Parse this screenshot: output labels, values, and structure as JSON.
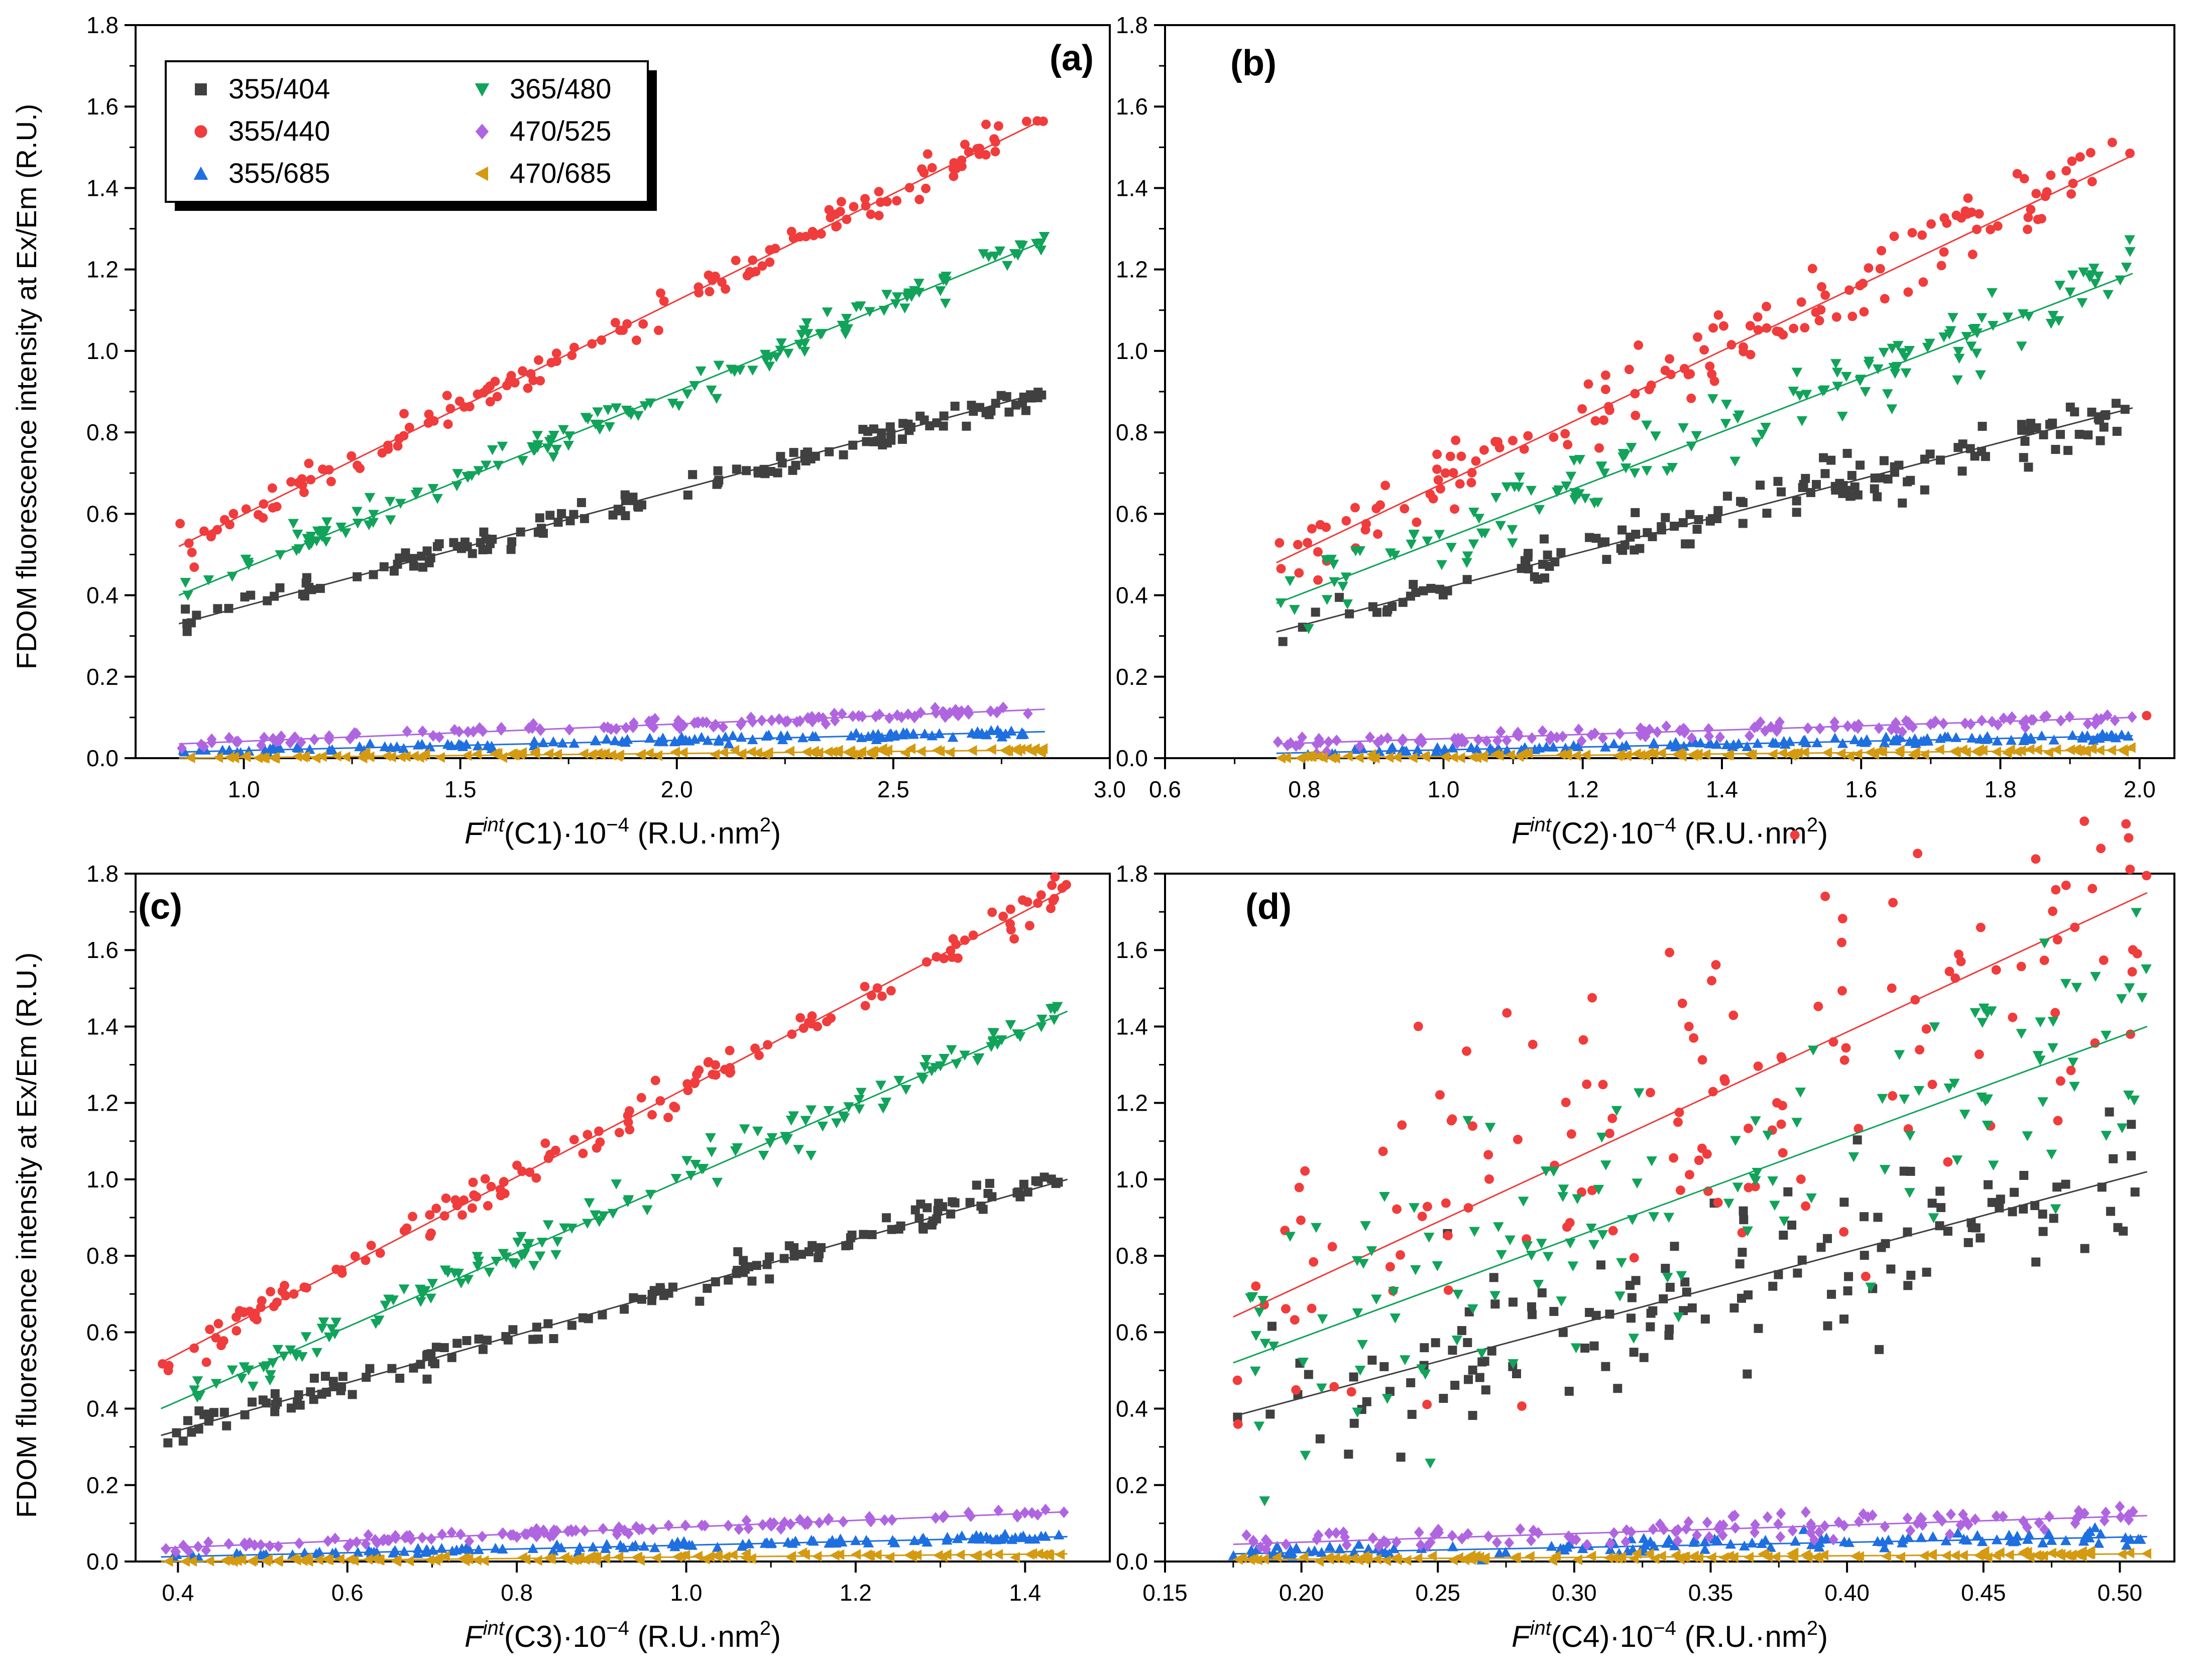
{
  "figure": {
    "y_axis_title": "FDOM fluorescence intensity at Ex/Em (R.U.)"
  },
  "legend": {
    "entries": [
      {
        "name": "355/404",
        "color": "#404040",
        "marker": "square"
      },
      {
        "name": "355/440",
        "color": "#f03c3c",
        "marker": "circle"
      },
      {
        "name": "355/685",
        "color": "#1e6fe0",
        "marker": "triangle-up"
      },
      {
        "name": "365/480",
        "color": "#11a35a",
        "marker": "triangle-down"
      },
      {
        "name": "470/525",
        "color": "#b065e0",
        "marker": "diamond"
      },
      {
        "name": "470/685",
        "color": "#d49a10",
        "marker": "triangle-left"
      }
    ]
  },
  "chart_data": [
    {
      "type": "scatter",
      "panel": "(a)",
      "xlabel_prefix": "F",
      "xlabel_sup": "int",
      "xlabel_rest": "(C1)·10",
      "xlabel_exp": "−4",
      "xlabel_units": " (R.U.·nm",
      "xlabel_units_exp": "2",
      "xlabel_close": ")",
      "xlim": [
        0.75,
        3.0
      ],
      "xticks": [
        1.0,
        1.5,
        2.0,
        2.5,
        3.0
      ],
      "xtick_labels": [
        "1.0",
        "1.5",
        "2.0",
        "2.5",
        "3.0"
      ],
      "ylim": [
        0.0,
        1.8
      ],
      "yticks": [
        0.0,
        0.2,
        0.4,
        0.6,
        0.8,
        1.0,
        1.2,
        1.4,
        1.6,
        1.8
      ],
      "ytick_labels": [
        "0.0",
        "0.2",
        "0.4",
        "0.6",
        "0.8",
        "1.0",
        "1.2",
        "1.4",
        "1.6",
        "1.8"
      ],
      "x_range": [
        0.85,
        2.85
      ],
      "series": [
        {
          "name": "355/404",
          "fit": [
            0.33,
            0.9
          ],
          "noise": 0.015,
          "points": 150
        },
        {
          "name": "355/440",
          "fit": [
            0.52,
            1.57
          ],
          "noise": 0.02,
          "points": 150
        },
        {
          "name": "355/685",
          "fit": [
            0.015,
            0.065
          ],
          "noise": 0.004,
          "points": 120
        },
        {
          "name": "365/480",
          "fit": [
            0.4,
            1.27
          ],
          "noise": 0.02,
          "points": 150
        },
        {
          "name": "470/525",
          "fit": [
            0.035,
            0.12
          ],
          "noise": 0.006,
          "points": 120
        },
        {
          "name": "470/685",
          "fit": [
            0.0,
            0.02
          ],
          "noise": 0.003,
          "points": 120
        }
      ]
    },
    {
      "type": "scatter",
      "panel": "(b)",
      "xlabel_prefix": "F",
      "xlabel_sup": "int",
      "xlabel_rest": "(C2)·10",
      "xlabel_exp": "−4",
      "xlabel_units": " (R.U.·nm",
      "xlabel_units_exp": "2",
      "xlabel_close": ")",
      "xlim": [
        0.6,
        2.05
      ],
      "xticks": [
        0.6,
        0.8,
        1.0,
        1.2,
        1.4,
        1.6,
        1.8,
        2.0
      ],
      "xtick_labels": [
        "0.6",
        "0.8",
        "1.0",
        "1.2",
        "1.4",
        "1.6",
        "1.8",
        "2.0"
      ],
      "ylim": [
        0.0,
        1.8
      ],
      "yticks": [
        0.0,
        0.2,
        0.4,
        0.6,
        0.8,
        1.0,
        1.2,
        1.4,
        1.6,
        1.8
      ],
      "ytick_labels": [
        "0.0",
        "0.2",
        "0.4",
        "0.6",
        "0.8",
        "1.0",
        "1.2",
        "1.4",
        "1.6",
        "1.8"
      ],
      "x_range": [
        0.76,
        1.99
      ],
      "series": [
        {
          "name": "355/404",
          "fit": [
            0.31,
            0.86
          ],
          "noise": 0.03,
          "points": 150
        },
        {
          "name": "355/440",
          "fit": [
            0.48,
            1.48
          ],
          "noise": 0.05,
          "points": 150
        },
        {
          "name": "355/685",
          "fit": [
            0.012,
            0.055
          ],
          "noise": 0.004,
          "points": 120
        },
        {
          "name": "365/480",
          "fit": [
            0.38,
            1.19
          ],
          "noise": 0.04,
          "points": 150
        },
        {
          "name": "470/525",
          "fit": [
            0.035,
            0.1
          ],
          "noise": 0.008,
          "points": 120
        },
        {
          "name": "470/685",
          "fit": [
            0.0,
            0.02
          ],
          "noise": 0.003,
          "points": 120
        }
      ]
    },
    {
      "type": "scatter",
      "panel": "(c)",
      "xlabel_prefix": "F",
      "xlabel_sup": "int",
      "xlabel_rest": "(C3)·10",
      "xlabel_exp": "−4",
      "xlabel_units": " (R.U.·nm",
      "xlabel_units_exp": "2",
      "xlabel_close": ")",
      "xlim": [
        0.35,
        1.5
      ],
      "xticks": [
        0.4,
        0.6,
        0.8,
        1.0,
        1.2,
        1.4
      ],
      "xtick_labels": [
        "0.4",
        "0.6",
        "0.8",
        "1.0",
        "1.2",
        "1.4"
      ],
      "ylim": [
        0.0,
        1.8
      ],
      "yticks": [
        0.0,
        0.2,
        0.4,
        0.6,
        0.8,
        1.0,
        1.2,
        1.4,
        1.6,
        1.8
      ],
      "ytick_labels": [
        "0.0",
        "0.2",
        "0.4",
        "0.6",
        "0.8",
        "1.0",
        "1.2",
        "1.4",
        "1.6",
        "1.8"
      ],
      "x_range": [
        0.38,
        1.45
      ],
      "series": [
        {
          "name": "355/404",
          "fit": [
            0.33,
            1.0
          ],
          "noise": 0.02,
          "points": 150
        },
        {
          "name": "355/440",
          "fit": [
            0.52,
            1.76
          ],
          "noise": 0.025,
          "points": 150
        },
        {
          "name": "355/685",
          "fit": [
            0.012,
            0.065
          ],
          "noise": 0.004,
          "points": 120
        },
        {
          "name": "365/480",
          "fit": [
            0.4,
            1.44
          ],
          "noise": 0.025,
          "points": 150
        },
        {
          "name": "470/525",
          "fit": [
            0.035,
            0.13
          ],
          "noise": 0.006,
          "points": 120
        },
        {
          "name": "470/685",
          "fit": [
            0.0,
            0.02
          ],
          "noise": 0.003,
          "points": 120
        }
      ]
    },
    {
      "type": "scatter",
      "panel": "(d)",
      "xlabel_prefix": "F",
      "xlabel_sup": "int",
      "xlabel_rest": "(C4)·10",
      "xlabel_exp": "−4",
      "xlabel_units": " (R.U.·nm",
      "xlabel_units_exp": "2",
      "xlabel_close": ")",
      "xlim": [
        0.15,
        0.52
      ],
      "xticks": [
        0.15,
        0.2,
        0.25,
        0.3,
        0.35,
        0.4,
        0.45,
        0.5
      ],
      "xtick_labels": [
        "0.15",
        "0.20",
        "0.25",
        "0.30",
        "0.35",
        "0.40",
        "0.45",
        "0.50"
      ],
      "ylim": [
        0.0,
        1.8
      ],
      "yticks": [
        0.0,
        0.2,
        0.4,
        0.6,
        0.8,
        1.0,
        1.2,
        1.4,
        1.6,
        1.8
      ],
      "ytick_labels": [
        "0.0",
        "0.2",
        "0.4",
        "0.6",
        "0.8",
        "1.0",
        "1.2",
        "1.4",
        "1.6",
        "1.8"
      ],
      "x_range": [
        0.175,
        0.51
      ],
      "series": [
        {
          "name": "355/404",
          "fit": [
            0.38,
            1.02
          ],
          "noise": 0.12,
          "points": 150
        },
        {
          "name": "355/440",
          "fit": [
            0.64,
            1.75
          ],
          "noise": 0.22,
          "points": 150
        },
        {
          "name": "355/685",
          "fit": [
            0.02,
            0.065
          ],
          "noise": 0.01,
          "points": 120
        },
        {
          "name": "365/480",
          "fit": [
            0.52,
            1.4
          ],
          "noise": 0.18,
          "points": 150
        },
        {
          "name": "470/525",
          "fit": [
            0.045,
            0.12
          ],
          "noise": 0.015,
          "points": 120
        },
        {
          "name": "470/685",
          "fit": [
            0.005,
            0.02
          ],
          "noise": 0.004,
          "points": 120
        }
      ]
    }
  ]
}
